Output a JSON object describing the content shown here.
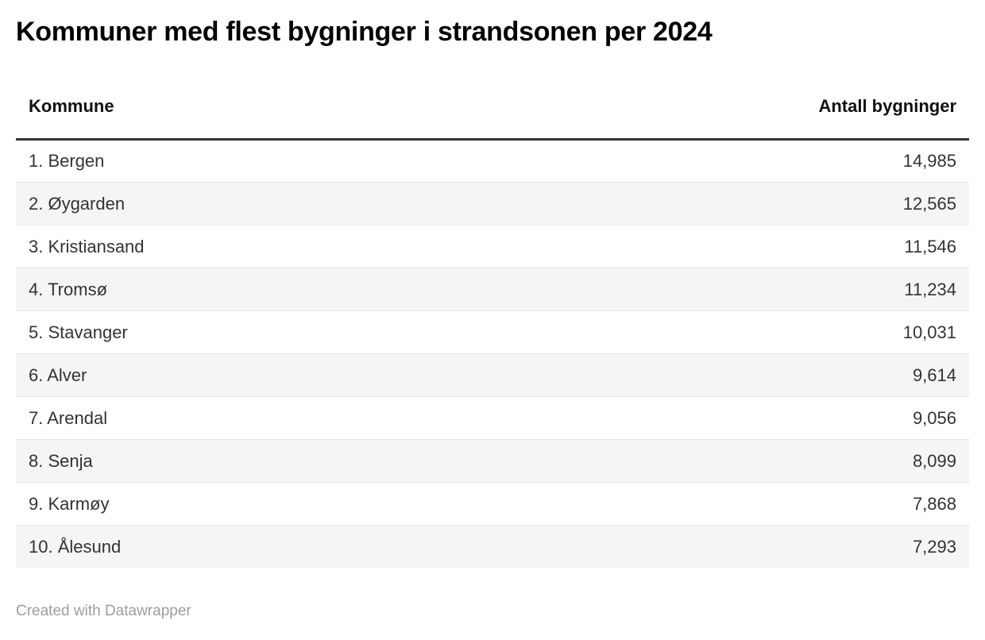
{
  "title": "Kommuner med flest bygninger i strandsonen per 2024",
  "table": {
    "columns": {
      "kommune": "Kommune",
      "antall": "Antall bygninger"
    },
    "rows": [
      {
        "label": "1. Bergen",
        "value": "14,985"
      },
      {
        "label": "2. Øygarden",
        "value": "12,565"
      },
      {
        "label": "3. Kristiansand",
        "value": "11,546"
      },
      {
        "label": "4. Tromsø",
        "value": "11,234"
      },
      {
        "label": "5. Stavanger",
        "value": "10,031"
      },
      {
        "label": "6. Alver",
        "value": "9,614"
      },
      {
        "label": "7. Arendal",
        "value": "9,056"
      },
      {
        "label": "8. Senja",
        "value": "8,099"
      },
      {
        "label": "9. Karmøy",
        "value": "7,868"
      },
      {
        "label": "10. Ålesund",
        "value": "7,293"
      }
    ]
  },
  "footer": {
    "attribution": "Created with Datawrapper"
  },
  "colors": {
    "title_text": "#000000",
    "header_text": "#111111",
    "body_text": "#333333",
    "header_rule": "#333333",
    "row_stripe": "#f5f5f5",
    "row_separator": "#e6e6e6",
    "attribution_text": "#9d9d9d",
    "background": "#ffffff"
  },
  "chart_data": {
    "type": "table",
    "title": "Kommuner med flest bygninger i strandsonen per 2024",
    "columns": [
      "Kommune",
      "Antall bygninger"
    ],
    "categories": [
      "Bergen",
      "Øygarden",
      "Kristiansand",
      "Tromsø",
      "Stavanger",
      "Alver",
      "Arendal",
      "Senja",
      "Karmøy",
      "Ålesund"
    ],
    "ranks": [
      1,
      2,
      3,
      4,
      5,
      6,
      7,
      8,
      9,
      10
    ],
    "values": [
      14985,
      12565,
      11546,
      11234,
      10031,
      9614,
      9056,
      8099,
      7868,
      7293
    ],
    "value_format": "thousands-comma",
    "sort": "descending by Antall bygninger",
    "zebra_striping": true,
    "attribution": "Created with Datawrapper"
  }
}
